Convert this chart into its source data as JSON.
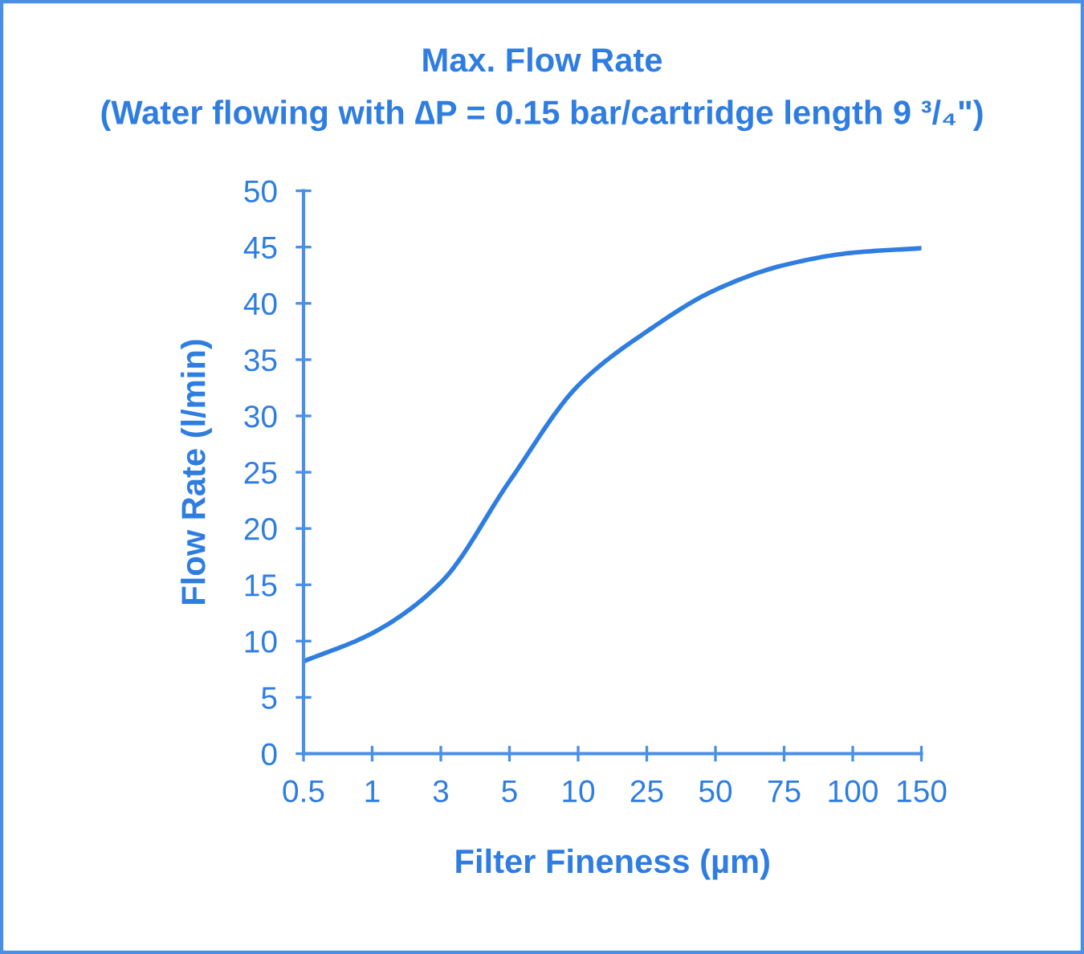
{
  "chart_data": {
    "type": "line",
    "title": "Max. Flow Rate",
    "subtitle": "(Water flowing with ∆P = 0.15 bar/cartridge length 9 ³/₄\")",
    "xlabel": "Filter Fineness (µm)",
    "ylabel": "Flow Rate (l/min)",
    "categories": [
      "0.5",
      "1",
      "3",
      "5",
      "10",
      "25",
      "50",
      "75",
      "100",
      "150"
    ],
    "series": [
      {
        "color": "#2f7de1",
        "values": [
          8.2,
          10.7,
          15.2,
          24.2,
          32.7,
          37.5,
          41.2,
          43.4,
          44.5,
          44.9
        ]
      }
    ],
    "ylim": [
      0,
      50
    ],
    "yticks": [
      0,
      5,
      10,
      15,
      20,
      25,
      30,
      35,
      40,
      45,
      50
    ],
    "grid": false,
    "legend": false,
    "marker": "none",
    "line_style": "solid"
  }
}
